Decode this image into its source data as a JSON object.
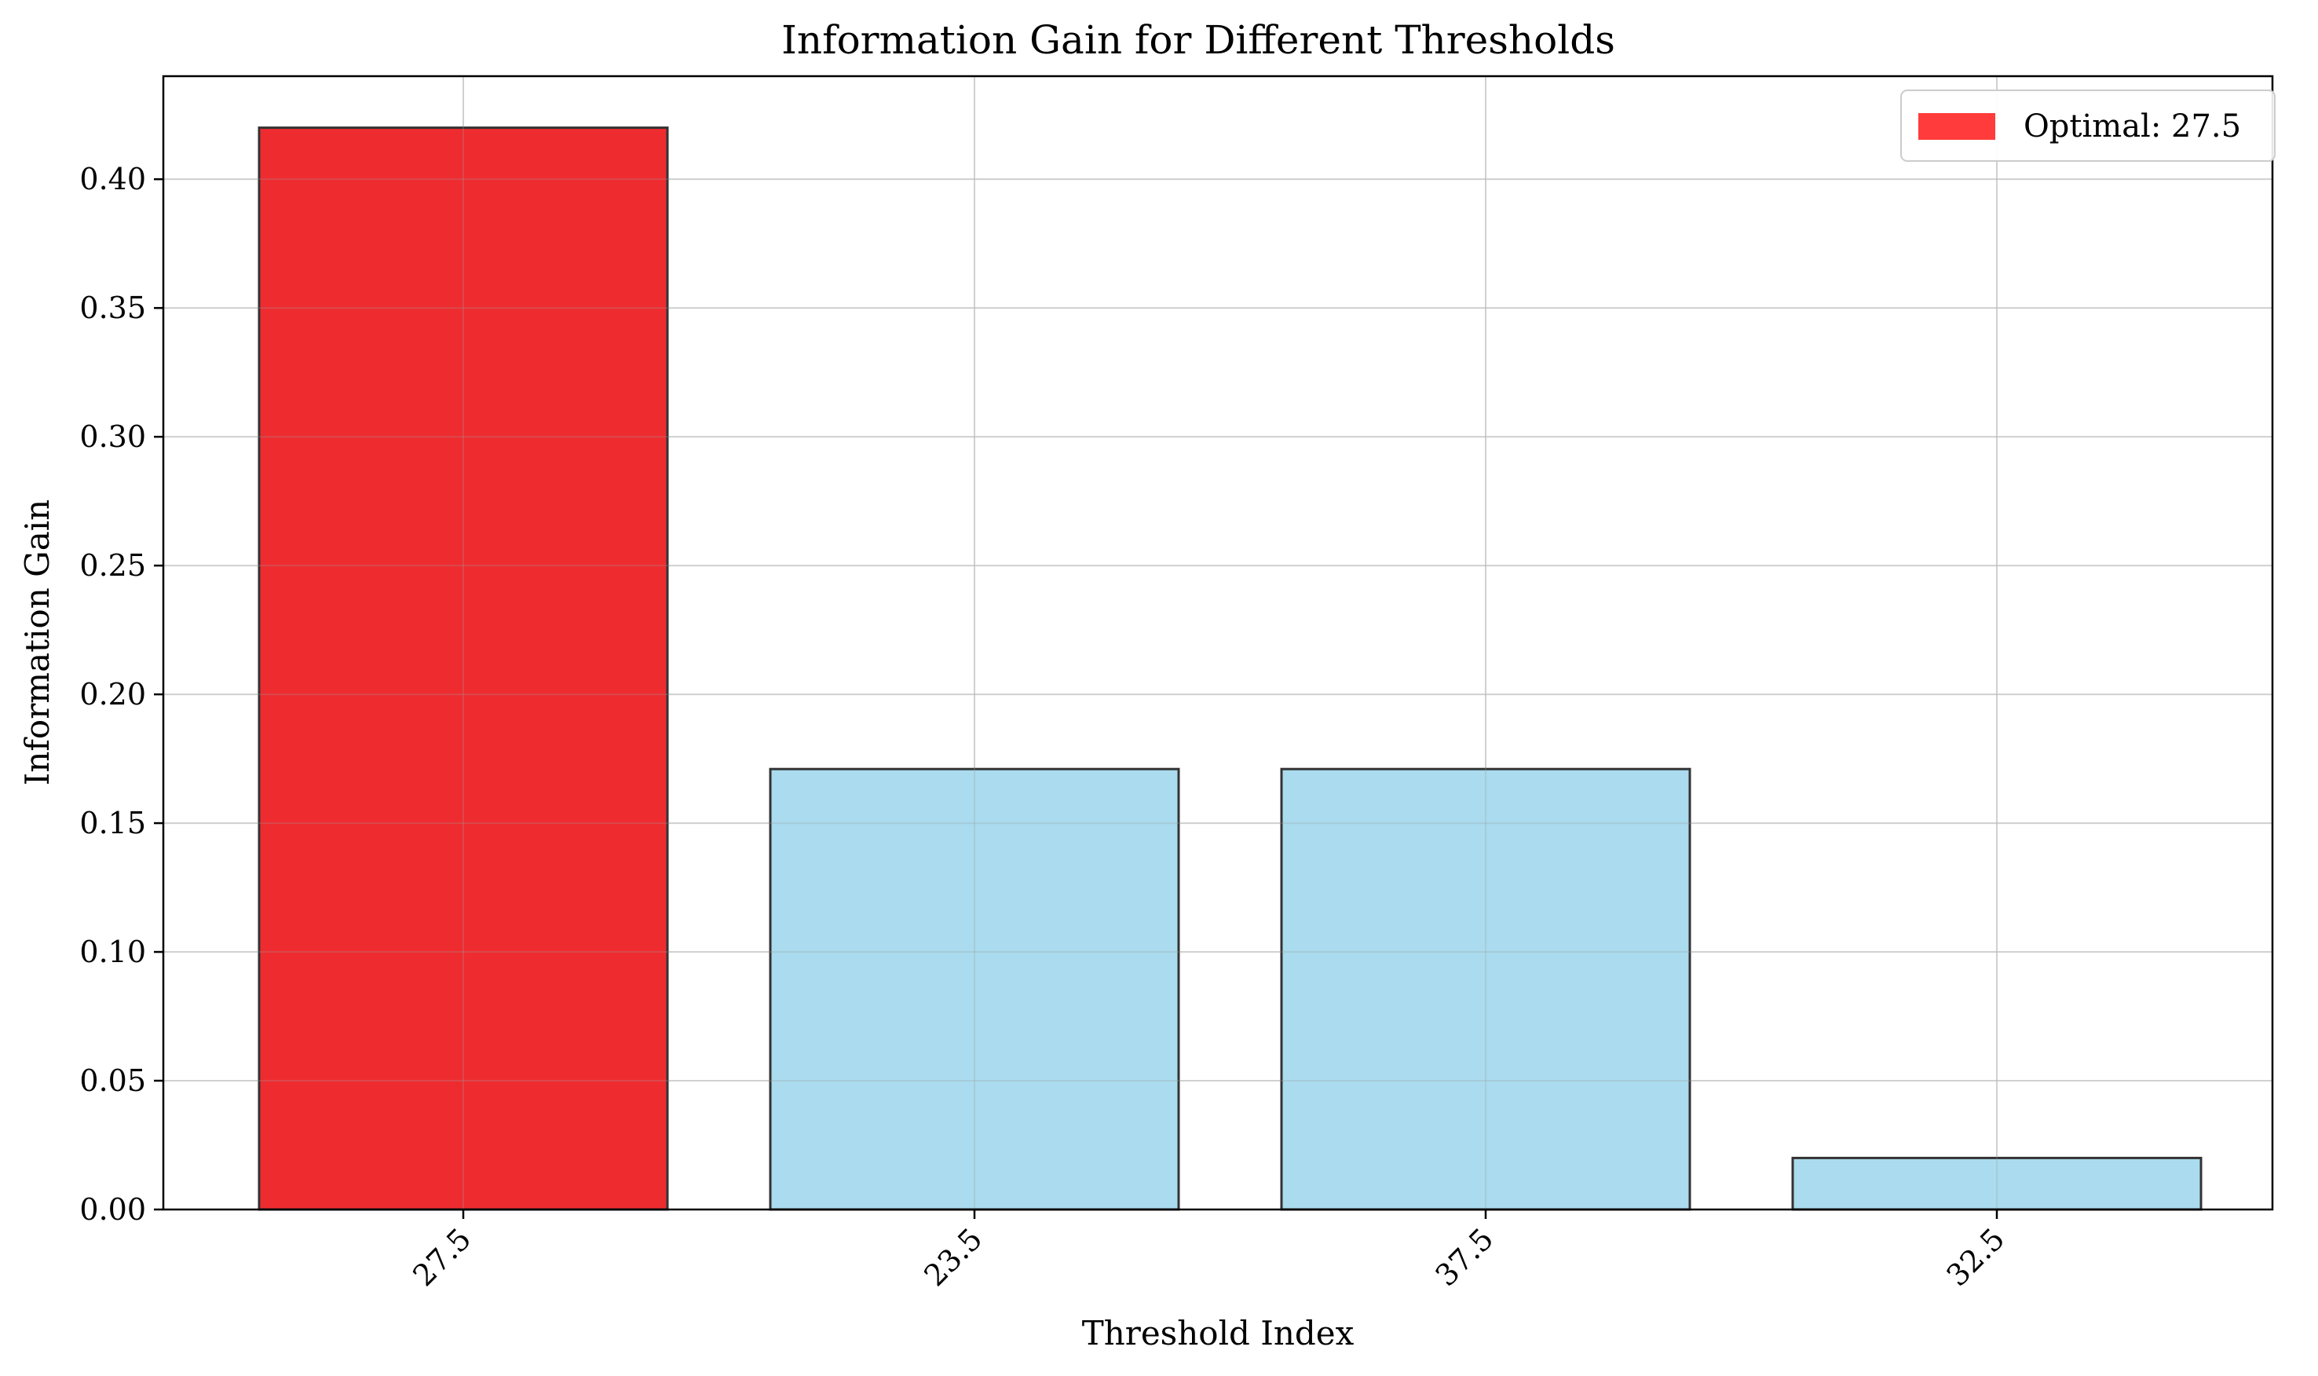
{
  "chart_data": {
    "type": "bar",
    "title": "Information Gain for Different Thresholds",
    "xlabel": "Threshold Index",
    "ylabel": "Information Gain",
    "categories": [
      "27.5",
      "23.5",
      "37.5",
      "32.5"
    ],
    "values": [
      0.42,
      0.171,
      0.171,
      0.02
    ],
    "highlight_index": 0,
    "ylim": [
      0,
      0.44
    ],
    "yticks": [
      0.0,
      0.05,
      0.1,
      0.15,
      0.2,
      0.25,
      0.3,
      0.35,
      0.4
    ],
    "grid": true,
    "legend": {
      "position": "top-right",
      "entries": [
        {
          "label": "Optimal: 27.5",
          "color": "#ff3b3b"
        }
      ]
    },
    "colors": {
      "highlight": "#ee2c30",
      "default": "#aadbee",
      "edge": "#333333",
      "grid": "#e2e2e2"
    }
  }
}
